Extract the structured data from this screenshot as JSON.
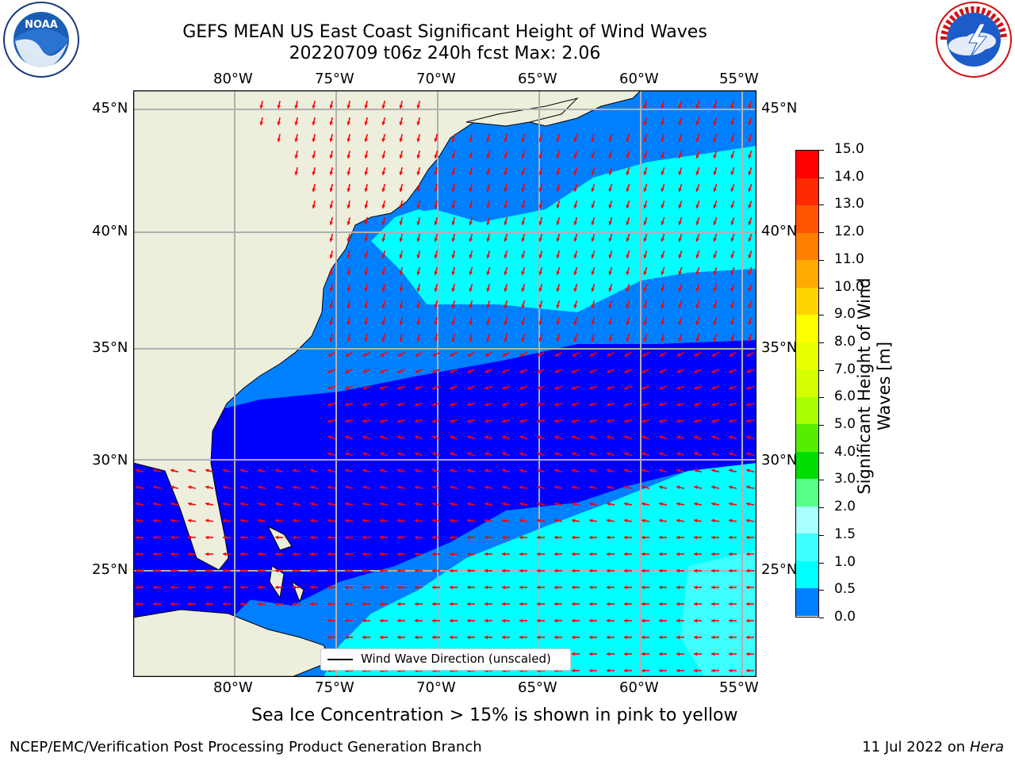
{
  "title": {
    "line1": "GEFS MEAN US East Coast Significant Height of Wind Waves",
    "line2": "20220709 t06z 240h fcst   Max: 2.06"
  },
  "map": {
    "lon_ticks": [
      "80°W",
      "75°W",
      "70°W",
      "65°W",
      "60°W",
      "55°W"
    ],
    "lat_ticks": [
      "45°N",
      "40°N",
      "35°N",
      "30°N",
      "25°N"
    ],
    "legend_label": "Wind Wave Direction (unscaled)",
    "colors": {
      "land": "#eeeedd",
      "band_0_0p5": "#0000ff",
      "band_0p5_1": "#0080ff",
      "band_1_1p5": "#00ffff",
      "band_1p5_2": "#40ffff",
      "arrow": "#ff0000"
    }
  },
  "colorbar": {
    "title_line1": "Significant Height of Wind",
    "title_line2": "Waves [m]",
    "labels": [
      "15.0",
      "14.0",
      "13.0",
      "12.0",
      "11.0",
      "10.0",
      "9.0",
      "8.0",
      "7.0",
      "6.0",
      "5.0",
      "4.0",
      "3.0",
      "2.0",
      "1.5",
      "1.0",
      "0.5",
      "0.0"
    ],
    "colors": [
      "#ff0000",
      "#ff2a00",
      "#ff5500",
      "#ff8000",
      "#ffaa00",
      "#ffd500",
      "#ffff00",
      "#eaff00",
      "#d4ff00",
      "#aaff00",
      "#55ee00",
      "#00dd00",
      "#55ff88",
      "#aaffff",
      "#40ffff",
      "#00ffff",
      "#0080ff",
      "#0000ff"
    ]
  },
  "note": "Sea Ice Concentration > 15% is shown in pink to yellow",
  "footer": {
    "left": "NCEP/EMC/Verification Post Processing Product Generation Branch",
    "date": "11 Jul 2022 on ",
    "machine": "Hera"
  },
  "logos": {
    "noaa_text": "NOAA",
    "noaa_ring": "NATIONAL OCEANIC AND ATMOSPHERIC ADMINISTRATION · U.S. DEPARTMENT OF COMMERCE",
    "nws_ring": "NATIONAL WEATHER SERVICE"
  }
}
